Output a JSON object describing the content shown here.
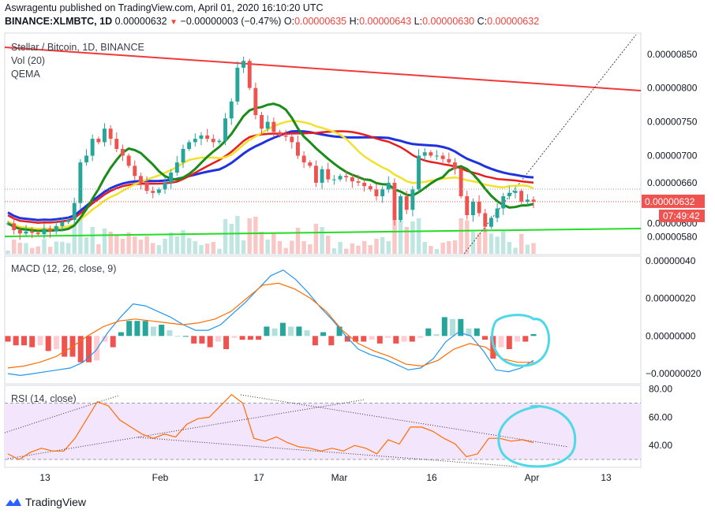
{
  "header": {
    "publisher": "Aswragentu published on TradingView.com, April 01, 2020 16:10:20 UTC",
    "symbol": "BINANCE:XLMBTC, 1D",
    "last": "0.00000632",
    "change": "−0.00000003 (−0.47%)",
    "o_label": "O:",
    "o": "0.00000635",
    "h_label": "H:",
    "h": "0.00000643",
    "l_label": "L:",
    "l": "0.00000630",
    "c_label": "C:",
    "c": "0.00000632"
  },
  "legend": {
    "title": "Stellar / Bitcoin, 1D, BINANCE",
    "vol": "Vol (20)",
    "qema": "QEMA",
    "macd": "MACD (12, 26, close, 9)",
    "rsi": "RSI (14, close)"
  },
  "price_axis": {
    "ticks": [
      "0.00000850",
      "0.00000800",
      "0.00000750",
      "0.00000700",
      "0.00000660",
      "0.00000600",
      "0.00000580"
    ],
    "current_price": "0.00000632",
    "countdown": "07:49:42"
  },
  "macd_axis": {
    "ticks": [
      "0.00000040",
      "0.00000020",
      "0.00000000",
      "−0.00000020"
    ]
  },
  "rsi_axis": {
    "ticks": [
      "80.00",
      "60.00",
      "40.00"
    ]
  },
  "time_axis": {
    "ticks": [
      "13",
      "Feb",
      "17",
      "Mar",
      "16",
      "Apr",
      "13"
    ]
  },
  "footer": {
    "brand": "TradingView"
  },
  "colors": {
    "up": "#26a69a",
    "down": "#ef5350",
    "bg": "#ffffff",
    "trend_red": "#f23838",
    "trend_green": "#22dd22",
    "ma_blue": "#1e33dd",
    "ma_red": "#e61e1e",
    "ma_yellow": "#f2e12c",
    "ma_green": "#1a8c1a",
    "macd_line": "#2196f3",
    "signal_line": "#ff6d00",
    "rsi_line": "#ff6d00",
    "rsi_band": "#f3e5fc",
    "annotation": "#4fd8e8"
  },
  "chart_data": [
    {
      "type": "candlestick",
      "title": "Stellar / Bitcoin, 1D, BINANCE",
      "x": [
        "13",
        "Feb",
        "17",
        "Mar",
        "16",
        "Apr",
        "13"
      ],
      "ylim": [
        5.55e-06,
        8.8e-06
      ],
      "closes": [
        6e-06,
        5.9e-06,
        5.85e-06,
        5.88e-06,
        5.86e-06,
        5.84e-06,
        5.92e-06,
        5.88e-06,
        5.96e-06,
        6.02e-06,
        6.05e-06,
        6.3e-06,
        6.9e-06,
        7e-06,
        7.25e-06,
        7.2e-06,
        7.4e-06,
        7.25e-06,
        7.1e-06,
        7e-06,
        6.85e-06,
        6.7e-06,
        6.6e-06,
        6.48e-06,
        6.45e-06,
        6.5e-06,
        6.6e-06,
        6.75e-06,
        6.9e-06,
        7.1e-06,
        7.2e-06,
        7.25e-06,
        7.3e-06,
        7.25e-06,
        7.2e-06,
        7.22e-06,
        7.55e-06,
        7.8e-06,
        8.3e-06,
        8.4e-06,
        8e-06,
        7.6e-06,
        7.4e-06,
        7.5e-06,
        7.35e-06,
        7.3e-06,
        7.28e-06,
        7.2e-06,
        7e-06,
        6.9e-06,
        6.85e-06,
        6.6e-06,
        6.8e-06,
        6.65e-06,
        6.65e-06,
        6.7e-06,
        6.68e-06,
        6.62e-06,
        6.6e-06,
        6.55e-06,
        6.5e-06,
        6.4e-06,
        6.5e-06,
        6.6e-06,
        6.05e-06,
        6.4e-06,
        6.2e-06,
        6.5e-06,
        7e-06,
        7.05e-06,
        7e-06,
        7e-06,
        6.95e-06,
        6.9e-06,
        6.8e-06,
        6.4e-06,
        6.12e-06,
        6.32e-06,
        6.15e-06,
        5.95e-06,
        6.08e-06,
        6.22e-06,
        6.4e-06,
        6.45e-06,
        6.48e-06,
        6.32e-06,
        6.35e-06,
        6.32e-06
      ],
      "series": [
        {
          "name": "Vol",
          "type": "histogram"
        },
        {
          "name": "QEMA",
          "type": "line"
        }
      ]
    },
    {
      "type": "line",
      "title": "MACD (12, 26, close, 9)",
      "ylim": [
        -2.5e-07,
        4.2e-07
      ],
      "series": [
        {
          "name": "MACD",
          "values": [
            -2e-07,
            -2.1e-07,
            -2e-07,
            -1.9e-07,
            -1.8e-07,
            -1.7e-07,
            -1.4e-07,
            -8e-08,
            2e-08,
            1e-07,
            1.7e-07,
            1.6e-07,
            1.3e-07,
            1e-07,
            6e-08,
            3e-08,
            3e-08,
            6e-08,
            1.2e-07,
            1.8e-07,
            2.5e-07,
            3.2e-07,
            3.5e-07,
            3e-07,
            2.3e-07,
            1.5e-07,
            8e-08,
            0.0,
            -7e-08,
            -1e-07,
            -1.2e-07,
            -1.5e-07,
            -1.8e-07,
            -1.7e-07,
            -1.2e-07,
            -3e-08,
            2e-08,
            0.0,
            -8e-08,
            -1.8e-07,
            -1.9e-07,
            -1.7e-07,
            -1.3e-07
          ]
        },
        {
          "name": "Signal",
          "values": [
            -1.7e-07,
            -1.6e-07,
            -1.4e-07,
            -1.1e-07,
            -6e-08,
            0.0,
            5e-08,
            8e-08,
            9e-08,
            8e-08,
            7e-08,
            6e-08,
            7e-08,
            9e-08,
            1.3e-07,
            2e-07,
            2.7e-07,
            2.8e-07,
            2.5e-07,
            2e-07,
            1.3e-07,
            3e-08,
            -4e-08,
            -8e-08,
            -1.1e-07,
            -1.5e-07,
            -1.6e-07,
            -1.3e-07,
            -7e-08,
            -4e-08,
            -6e-08,
            -1.2e-07,
            -1.4e-07,
            -1.4e-07
          ]
        }
      ]
    },
    {
      "type": "line",
      "title": "RSI (14, close)",
      "ylim": [
        25,
        82
      ],
      "series": [
        {
          "name": "RSI",
          "values": [
            34,
            30,
            35,
            38,
            36,
            36,
            45,
            58,
            71,
            68,
            58,
            53,
            48,
            45,
            48,
            46,
            55,
            59,
            60,
            68,
            76,
            70,
            45,
            43,
            46,
            42,
            39,
            38,
            36,
            38,
            36,
            40,
            38,
            34,
            44,
            41,
            53,
            53,
            50,
            45,
            41,
            32,
            34,
            45,
            45,
            43,
            44,
            42
          ]
        }
      ]
    }
  ]
}
